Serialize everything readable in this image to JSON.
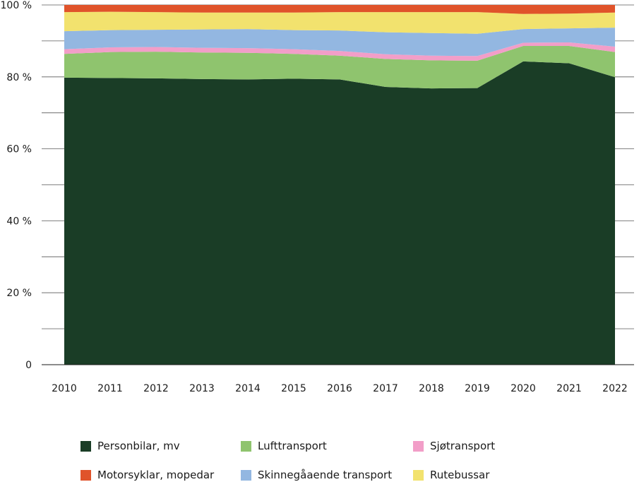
{
  "chart_data": {
    "type": "area",
    "stacked": true,
    "normalized": true,
    "title": "",
    "xlabel": "",
    "ylabel": "",
    "x": [
      "2010",
      "2011",
      "2012",
      "2013",
      "2014",
      "2015",
      "2016",
      "2017",
      "2018",
      "2019",
      "2020",
      "2021",
      "2022"
    ],
    "ylim": [
      0,
      100
    ],
    "yticks": [
      0,
      10,
      20,
      30,
      40,
      50,
      60,
      70,
      80,
      90,
      100
    ],
    "ytick_labels": [
      "0",
      "",
      "20 %",
      "",
      "40 %",
      "",
      "60 %",
      "",
      "80 %",
      "",
      "100 %"
    ],
    "grid": true,
    "legend_position": "bottom",
    "series": [
      {
        "name": "Personbilar, mv",
        "color": "#1a3d26",
        "values": [
          79.8,
          79.7,
          79.6,
          79.4,
          79.3,
          79.5,
          79.3,
          77.2,
          76.8,
          76.9,
          84.3,
          83.8,
          79.9
        ]
      },
      {
        "name": "Lufttransport",
        "color": "#8fc46e",
        "values": [
          6.6,
          7.2,
          7.4,
          7.4,
          7.4,
          6.9,
          6.6,
          7.8,
          7.8,
          7.6,
          4.3,
          4.8,
          7.0
        ]
      },
      {
        "name": "Sjøtransport",
        "color": "#f29ec8",
        "values": [
          1.3,
          1.3,
          1.3,
          1.3,
          1.3,
          1.3,
          1.3,
          1.3,
          1.3,
          1.3,
          0.9,
          1.0,
          1.5
        ]
      },
      {
        "name": "Skinnegåaende transport",
        "color": "#93b7e1",
        "values": [
          5.0,
          4.8,
          4.8,
          5.1,
          5.3,
          5.3,
          5.7,
          6.1,
          6.3,
          6.2,
          3.8,
          3.9,
          5.3
        ]
      },
      {
        "name": "Rutebussar",
        "color": "#f2e26e",
        "values": [
          5.3,
          5.1,
          4.9,
          4.7,
          4.6,
          4.9,
          5.1,
          5.6,
          5.8,
          6.0,
          4.2,
          4.1,
          4.2
        ]
      },
      {
        "name": "Motorsyklar, mopedar",
        "color": "#e0532a",
        "values": [
          2.0,
          1.9,
          2.0,
          2.1,
          2.1,
          2.1,
          2.0,
          2.0,
          2.0,
          2.0,
          2.5,
          2.4,
          2.1
        ]
      }
    ],
    "legend_order": [
      "Personbilar, mv",
      "Lufttransport",
      "Sjøtransport",
      "Motorsyklar, mopedar",
      "Skinnegåaende transport",
      "Rutebussar"
    ]
  }
}
